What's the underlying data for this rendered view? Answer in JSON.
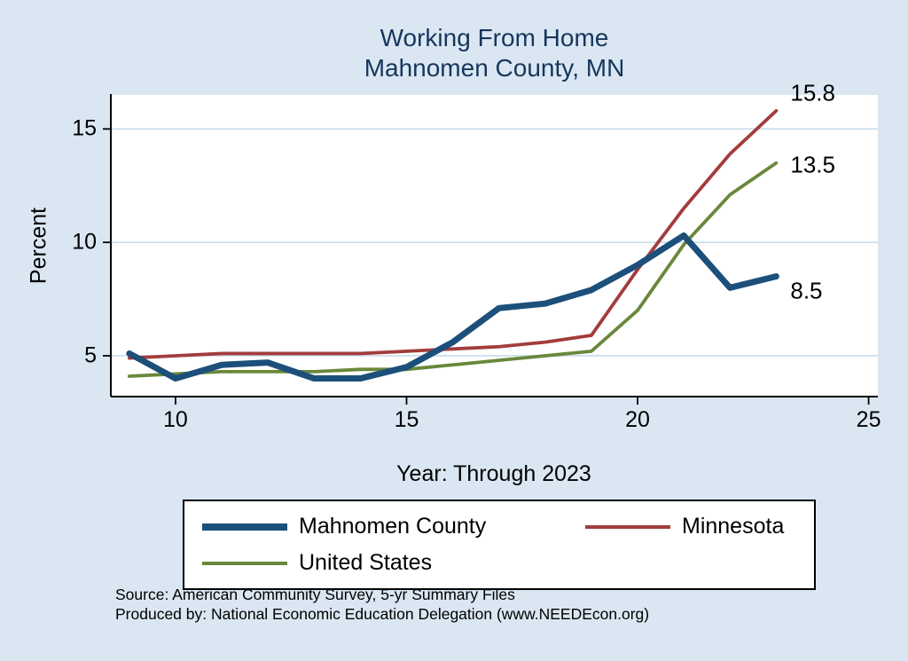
{
  "title": {
    "line1": "Working From Home",
    "line2": "Mahnomen County, MN"
  },
  "axes": {
    "y_label": "Percent",
    "x_label": "Year: Through 2023"
  },
  "source": {
    "line1": "Source: American Community Survey, 5-yr Summary Files",
    "line2": "Produced by: National Economic Education Delegation (www.NEEDEcon.org)"
  },
  "colors": {
    "background": "#dae7f2",
    "plot_bg": "#ffffff",
    "grid": "#c7dcec",
    "title": "#17365d",
    "axis": "#000000"
  },
  "chart_data": {
    "type": "line",
    "title": "Working From Home, Mahnomen County, MN",
    "xlabel": "Year: Through 2023",
    "ylabel": "Percent",
    "x": [
      9,
      10,
      11,
      12,
      13,
      14,
      15,
      16,
      17,
      18,
      19,
      20,
      21,
      22,
      23
    ],
    "x_ticks": [
      10,
      15,
      20,
      25
    ],
    "y_ticks": [
      5,
      10,
      15
    ],
    "x_range": [
      8.6,
      25.2
    ],
    "y_range": [
      3.2,
      16.5
    ],
    "grid": "horizontal",
    "legend_position": "bottom",
    "series": [
      {
        "name": "Mahnomen County",
        "color": "#1c4f7a",
        "end_label": "8.5",
        "values": [
          5.1,
          4.0,
          4.6,
          4.7,
          4.0,
          4.0,
          4.5,
          5.6,
          7.1,
          7.3,
          7.9,
          9.0,
          10.3,
          8.0,
          8.5
        ]
      },
      {
        "name": "Minnesota",
        "color": "#a33c3c",
        "end_label": "15.8",
        "values": [
          4.9,
          5.0,
          5.1,
          5.1,
          5.1,
          5.1,
          5.2,
          5.3,
          5.4,
          5.6,
          5.9,
          8.8,
          11.5,
          13.9,
          15.8
        ]
      },
      {
        "name": "United States",
        "color": "#69883b",
        "end_label": "13.5",
        "values": [
          4.1,
          4.2,
          4.3,
          4.3,
          4.3,
          4.4,
          4.4,
          4.6,
          4.8,
          5.0,
          5.2,
          7.0,
          9.9,
          12.1,
          13.5
        ]
      }
    ]
  }
}
